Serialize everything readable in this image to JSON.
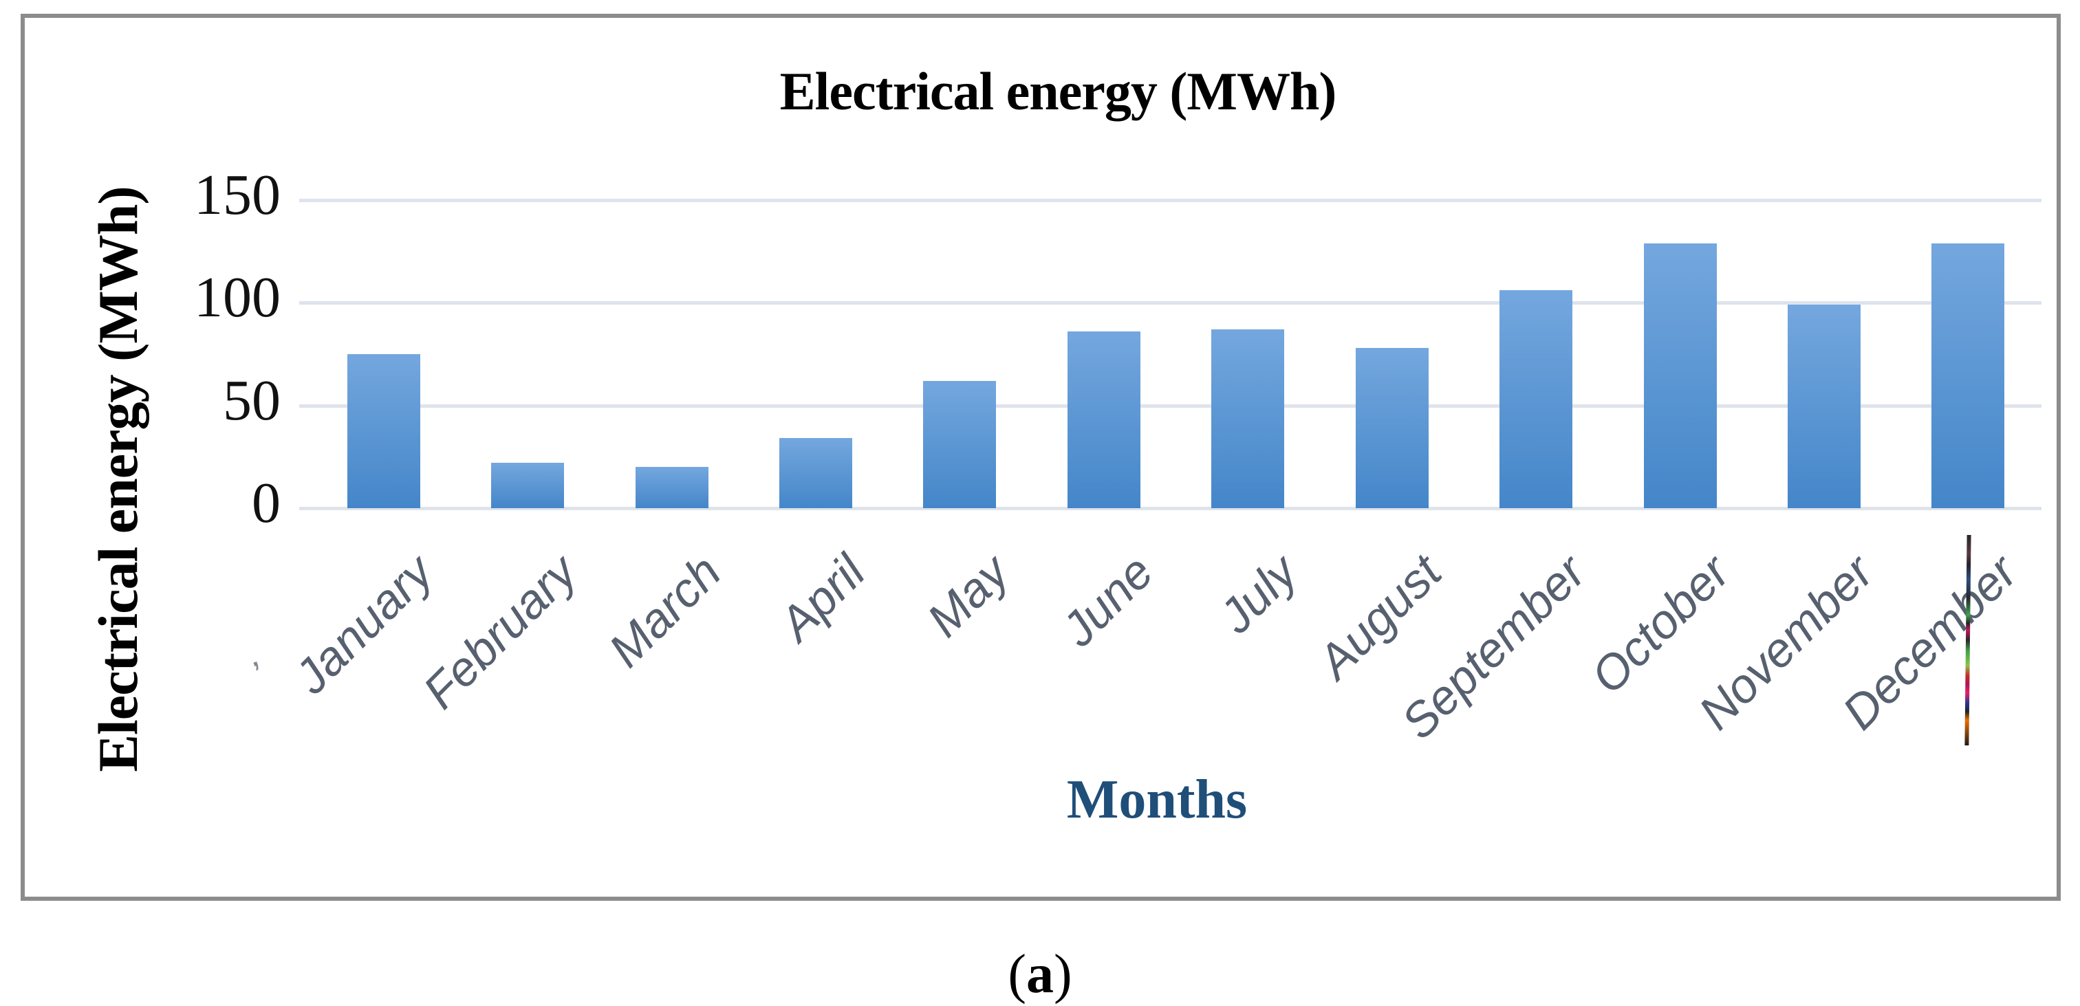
{
  "figure": {
    "caption_open": "(",
    "caption_letter": "a",
    "caption_close": ")"
  },
  "chart_data": {
    "type": "bar",
    "title": "Electrical energy (MWh)",
    "ylabel": "Electrical energy (MWh)",
    "xlabel": "Months",
    "categories": [
      "January",
      "February",
      "March",
      "April",
      "May",
      "June",
      "July",
      "August",
      "September",
      "October",
      "November",
      "December"
    ],
    "values": [
      75,
      22,
      20,
      34,
      62,
      86,
      87,
      78,
      106,
      129,
      99,
      129
    ],
    "ylim": [
      0,
      150
    ],
    "yticks_top_to_bottom": [
      "150",
      "100",
      "50",
      "0"
    ],
    "grid": true,
    "legend_position": "none",
    "colors": {
      "bar_gradient_top": "#74A7DE",
      "bar_gradient_bottom": "#4486C9",
      "gridline": "#DEE3EC",
      "frame_border": "#8C8C8C",
      "title_text": "#000000",
      "tick_text": "#111111",
      "month_label_text": "#57606F",
      "xlabel_text": "#1F4E79"
    }
  }
}
